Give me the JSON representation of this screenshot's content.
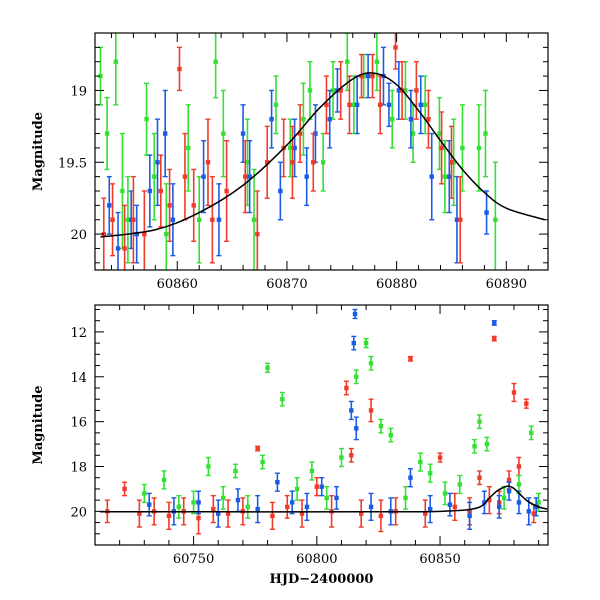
{
  "chart_data": [
    {
      "type": "scatter",
      "title": "",
      "xlabel": "",
      "ylabel": "Magnitude",
      "xlim": [
        60852.5,
        60893.8
      ],
      "ylim": [
        20.25,
        18.6
      ],
      "y_inverted": true,
      "x_ticks": [
        60860,
        60870,
        60880,
        60890
      ],
      "x_tick_labels": [
        "60860",
        "60870",
        "60880",
        "60890"
      ],
      "y_ticks": [
        19,
        19.5,
        20
      ],
      "y_tick_labels": [
        "19",
        "19.5",
        "20"
      ],
      "grid": false,
      "legend": "none",
      "colors": {
        "green": "#33e033",
        "blue": "#1a5ce6",
        "red": "#f03a2a",
        "model": "#000000"
      },
      "model_curve": {
        "type": "line",
        "x": [
          60853,
          60858,
          60862,
          60866,
          60870,
          60873,
          60876,
          60878,
          60880,
          60882,
          60884,
          60886,
          60888,
          60890,
          60893.5
        ],
        "y": [
          20.02,
          19.97,
          19.85,
          19.66,
          19.38,
          19.12,
          18.92,
          18.88,
          18.96,
          19.14,
          19.35,
          19.55,
          19.71,
          19.82,
          19.9
        ]
      },
      "series": [
        {
          "color": "green",
          "x": [
            60853.0,
            60853.6,
            60854.4,
            60855.0,
            60855.5,
            60857.2,
            60857.9,
            60859.0,
            60861.0,
            60862.0,
            60863.5,
            60864.2,
            60866.4,
            60867.0,
            60869.0,
            60870.3,
            60871.5,
            60872.1,
            60873.3,
            60874.2,
            60875.5,
            60876.1,
            60877.0,
            60878.2,
            60879.6,
            60880.8,
            60881.5,
            60882.6,
            60883.9,
            60884.4,
            60885.2,
            60886.0,
            60887.5,
            60888.1,
            60889.0
          ],
          "y": [
            18.9,
            19.3,
            18.8,
            19.7,
            19.9,
            19.2,
            19.6,
            20.0,
            19.4,
            19.9,
            18.8,
            19.3,
            19.5,
            19.9,
            19.1,
            19.4,
            19.2,
            19.0,
            19.5,
            19.0,
            18.8,
            19.1,
            18.9,
            18.8,
            19.2,
            19.0,
            19.3,
            19.1,
            19.3,
            19.6,
            19.5,
            19.4,
            19.4,
            19.3,
            19.9
          ],
          "err": [
            0.2,
            0.25,
            0.3,
            0.4,
            0.3,
            0.25,
            0.3,
            0.35,
            0.3,
            0.3,
            0.25,
            0.3,
            0.3,
            0.35,
            0.2,
            0.2,
            0.25,
            0.2,
            0.2,
            0.2,
            0.2,
            0.2,
            0.15,
            0.2,
            0.2,
            0.2,
            0.2,
            0.2,
            0.25,
            0.25,
            0.3,
            0.3,
            0.3,
            0.3,
            0.4
          ]
        },
        {
          "color": "blue",
          "x": [
            60853.8,
            60854.6,
            60855.8,
            60856.3,
            60857.5,
            60858.2,
            60858.9,
            60859.6,
            60862.4,
            60863.8,
            60866.0,
            60866.6,
            60868.6,
            60869.4,
            60870.7,
            60871.8,
            60872.6,
            60873.9,
            60874.6,
            60876.4,
            60877.4,
            60878.8,
            60879.3,
            60880.2,
            60881.3,
            60882.2,
            60883.2,
            60884.8,
            60885.5,
            60888.2
          ],
          "y": [
            19.8,
            20.1,
            19.9,
            20.0,
            19.7,
            19.5,
            19.3,
            19.9,
            19.6,
            19.9,
            19.3,
            19.6,
            19.2,
            19.7,
            19.4,
            19.6,
            19.3,
            19.2,
            19.0,
            19.1,
            18.9,
            18.9,
            19.1,
            19.0,
            19.2,
            19.1,
            19.6,
            19.6,
            19.9,
            19.85
          ],
          "err": [
            0.2,
            0.25,
            0.2,
            0.2,
            0.25,
            0.3,
            0.3,
            0.25,
            0.25,
            0.25,
            0.2,
            0.25,
            0.2,
            0.2,
            0.2,
            0.2,
            0.2,
            0.2,
            0.15,
            0.2,
            0.15,
            0.2,
            0.15,
            0.2,
            0.2,
            0.2,
            0.3,
            0.25,
            0.3,
            0.15
          ]
        },
        {
          "color": "red",
          "x": [
            60853.3,
            60854.1,
            60855.2,
            60856.0,
            60857.0,
            60858.5,
            60859.3,
            60860.2,
            60860.7,
            60861.5,
            60862.8,
            60863.2,
            60864.5,
            60866.2,
            60867.3,
            60868.2,
            60869.7,
            60870.5,
            60871.2,
            60872.4,
            60873.6,
            60874.9,
            60875.7,
            60876.8,
            60877.8,
            60878.5,
            60879.9,
            60880.5,
            60881.8,
            60882.9,
            60884.1,
            60885.0,
            60885.8
          ],
          "y": [
            20.0,
            19.9,
            20.1,
            19.9,
            20.0,
            19.7,
            19.8,
            18.85,
            19.6,
            19.8,
            19.5,
            19.9,
            19.7,
            19.6,
            20.0,
            19.5,
            19.4,
            19.5,
            19.3,
            19.5,
            19.1,
            19.0,
            19.1,
            18.9,
            18.9,
            19.1,
            18.7,
            19.0,
            19.0,
            19.2,
            19.4,
            19.5,
            19.9
          ],
          "err": [
            0.25,
            0.25,
            0.3,
            0.3,
            0.3,
            0.25,
            0.25,
            0.15,
            0.3,
            0.25,
            0.3,
            0.3,
            0.35,
            0.25,
            0.3,
            0.25,
            0.2,
            0.25,
            0.2,
            0.2,
            0.2,
            0.2,
            0.2,
            0.15,
            0.15,
            0.2,
            0.15,
            0.2,
            0.2,
            0.2,
            0.25,
            0.25,
            0.3
          ]
        }
      ]
    },
    {
      "type": "scatter",
      "title": "",
      "xlabel": "HJD−2400000",
      "ylabel": "Magnitude",
      "xlim": [
        60710,
        60893.8
      ],
      "ylim": [
        21.5,
        10.8
      ],
      "y_inverted": true,
      "x_ticks": [
        60750,
        60800,
        60850
      ],
      "x_tick_labels": [
        "60750",
        "60800",
        "60850"
      ],
      "y_ticks": [
        12,
        14,
        16,
        18,
        20
      ],
      "y_tick_labels": [
        "12",
        "14",
        "16",
        "18",
        "20"
      ],
      "grid": false,
      "legend": "none",
      "model_curve": {
        "type": "line",
        "x": [
          60712,
          60760,
          60820,
          60850,
          60865,
          60870,
          60873,
          60876,
          60878,
          60880,
          60883,
          60886,
          60890,
          60893.5
        ],
        "y": [
          20.02,
          20.02,
          20.02,
          20.0,
          19.85,
          19.4,
          19.1,
          18.92,
          18.88,
          18.98,
          19.3,
          19.58,
          19.8,
          19.9
        ]
      },
      "series": [
        {
          "color": "red",
          "x": [
            60715,
            60722,
            60728,
            60734,
            60740,
            60746,
            60752,
            60758,
            60764,
            60770,
            60776,
            60782,
            60788,
            60794,
            60800,
            60806,
            60812,
            60814,
            60818,
            60822,
            60826,
            60832,
            60838,
            60844,
            60850,
            60856,
            60862,
            60866,
            60870,
            60872,
            60874,
            60878,
            60880,
            60882,
            60885,
            60888
          ],
          "y": [
            20.0,
            19.0,
            20.1,
            20.0,
            20.2,
            20.0,
            20.3,
            19.9,
            20.1,
            20.0,
            17.2,
            20.2,
            19.8,
            20.1,
            18.9,
            20.0,
            14.5,
            17.5,
            20.1,
            15.5,
            20.2,
            20.0,
            13.2,
            20.1,
            17.6,
            19.8,
            20.0,
            18.5,
            19.5,
            12.3,
            19.6,
            18.6,
            14.7,
            18.0,
            15.2,
            20.1
          ],
          "err": [
            0.5,
            0.3,
            0.6,
            0.6,
            0.6,
            0.6,
            0.7,
            0.6,
            0.6,
            0.6,
            0.1,
            0.6,
            0.5,
            0.6,
            0.4,
            0.7,
            0.3,
            0.3,
            0.6,
            0.5,
            0.7,
            0.6,
            0.1,
            0.6,
            0.2,
            0.6,
            0.6,
            0.3,
            0.6,
            0.1,
            0.5,
            0.4,
            0.4,
            0.4,
            0.2,
            0.4
          ]
        },
        {
          "color": "green",
          "x": [
            60730,
            60738,
            60744,
            60750,
            60756,
            60762,
            60767,
            60772,
            60778,
            60780,
            60786,
            60792,
            60798,
            60804,
            60810,
            60816,
            60820,
            60822,
            60826,
            60830,
            60836,
            60842,
            60846,
            60852,
            60858,
            60864,
            60866,
            60869,
            60876,
            60882,
            60887,
            60890
          ],
          "y": [
            19.2,
            18.6,
            19.8,
            19.6,
            18.0,
            19.4,
            18.2,
            19.8,
            17.8,
            13.6,
            15.0,
            19.0,
            18.2,
            19.4,
            17.6,
            14.0,
            12.5,
            13.4,
            16.2,
            16.6,
            19.4,
            17.8,
            18.3,
            19.2,
            18.8,
            17.1,
            16.0,
            17.0,
            19.4,
            18.8,
            16.5,
            19.6
          ],
          "err": [
            0.4,
            0.4,
            0.5,
            0.5,
            0.4,
            0.5,
            0.3,
            0.5,
            0.3,
            0.2,
            0.3,
            0.5,
            0.4,
            0.5,
            0.4,
            0.3,
            0.2,
            0.3,
            0.3,
            0.3,
            0.5,
            0.4,
            0.4,
            0.5,
            0.4,
            0.3,
            0.3,
            0.3,
            0.5,
            0.4,
            0.3,
            0.4
          ]
        },
        {
          "color": "blue",
          "x": [
            60732,
            60742,
            60752,
            60760,
            60768,
            60776,
            60784,
            60790,
            60796,
            60802,
            60808,
            60814,
            60815,
            60815.5,
            60816,
            60822,
            60830,
            60838,
            60846,
            60854,
            60862,
            60868,
            60872,
            60874,
            60878,
            60882,
            60886,
            60889
          ],
          "y": [
            19.7,
            20.0,
            19.6,
            20.1,
            19.5,
            19.9,
            18.7,
            19.6,
            19.8,
            18.9,
            19.4,
            15.5,
            12.5,
            11.2,
            16.3,
            19.8,
            20.0,
            18.5,
            19.9,
            19.7,
            20.2,
            19.6,
            11.6,
            19.8,
            19.1,
            19.6,
            20.0,
            19.8
          ],
          "err": [
            0.5,
            0.6,
            0.5,
            0.6,
            0.5,
            0.6,
            0.4,
            0.5,
            0.6,
            0.4,
            0.5,
            0.4,
            0.3,
            0.2,
            0.5,
            0.6,
            0.6,
            0.4,
            0.6,
            0.5,
            0.6,
            0.5,
            0.1,
            0.5,
            0.4,
            0.5,
            0.6,
            0.4
          ]
        }
      ]
    }
  ]
}
